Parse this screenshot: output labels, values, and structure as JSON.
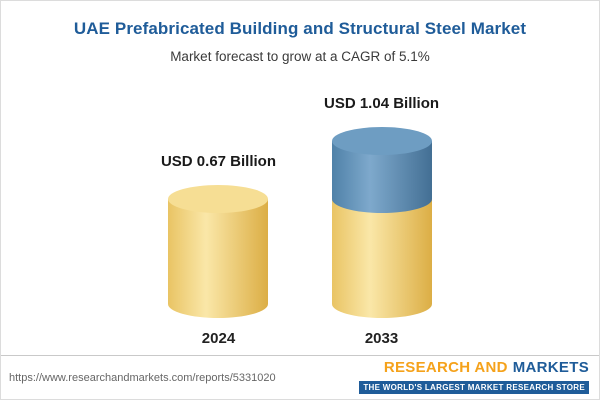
{
  "header": {
    "title": "UAE Prefabricated Building and Structural Steel Market",
    "subtitle": "Market forecast to grow at a CAGR of 5.1%"
  },
  "colors": {
    "title": "#1F5C99",
    "subtitle": "#3A3A3A",
    "footer_url": "#666666",
    "logo_orange": "#F5A21B",
    "logo_blue": "#1F5C99",
    "tagline_bg": "#1F5C99",
    "tagline_text": "#FFFFFF"
  },
  "footer": {
    "report_url": "https://www.researchandmarkets.com/reports/5331020",
    "logo": {
      "name_orange": "RESEARCH AND",
      "name_blue": "MARKETS",
      "tagline": "THE WORLD'S LARGEST MARKET RESEARCH STORE"
    }
  },
  "chart_data": {
    "type": "bar",
    "style": "3d-cylinder",
    "title": "UAE Prefabricated Building and Structural Steel Market",
    "subtitle": "Market forecast to grow at a CAGR of 5.1%",
    "cagr_percent": 5.1,
    "unit": "USD Billion",
    "categories": [
      "2024",
      "2033"
    ],
    "values": [
      0.67,
      1.04
    ],
    "value_labels": [
      "USD 0.67 Billion",
      "USD 1.04 Billion"
    ],
    "ylim": [
      0,
      1.2
    ],
    "legend": "none",
    "grid": false,
    "bars": [
      {
        "category": "2024",
        "value": 0.67,
        "label": "USD 0.67 Billion",
        "segments": [
          {
            "name": "base",
            "value": 0.67,
            "fill": "gold"
          }
        ]
      },
      {
        "category": "2033",
        "value": 1.04,
        "label": "USD 1.04 Billion",
        "segments": [
          {
            "name": "base",
            "value": 0.67,
            "fill": "gold"
          },
          {
            "name": "growth",
            "value": 0.37,
            "fill": "blue"
          }
        ]
      }
    ],
    "palette": {
      "gold": {
        "edge_left": "#E9C464",
        "mid": "#FAE7A8",
        "edge_right": "#DCAE45",
        "top": "#F6DE94"
      },
      "blue": {
        "edge_left": "#4F81A8",
        "mid": "#7EA9CC",
        "edge_right": "#436F94",
        "top": "#6E9DC2"
      }
    }
  }
}
